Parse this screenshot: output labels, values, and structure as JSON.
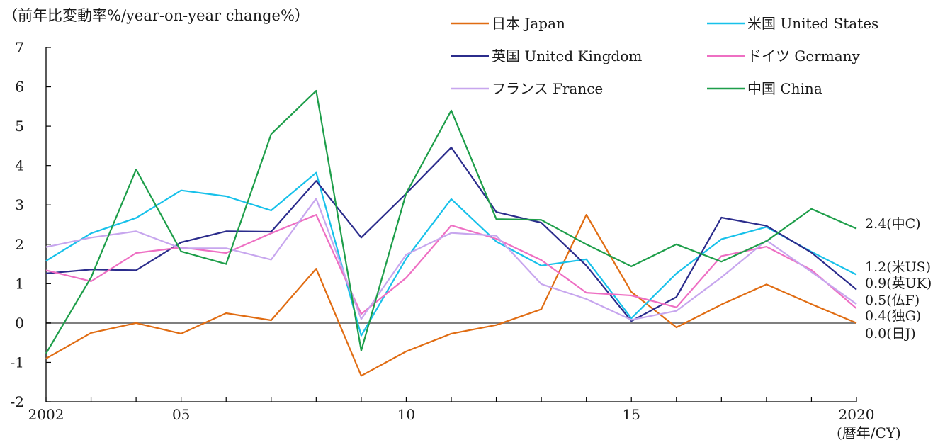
{
  "chart_data": {
    "type": "line",
    "ylabel": "（前年比変動率%/year-on-year change%）",
    "xlabel_unit": "(暦年/CY)",
    "ylim": [
      -2,
      7
    ],
    "yticks": [
      -2,
      -1,
      0,
      1,
      2,
      3,
      4,
      5,
      6,
      7
    ],
    "x": [
      2002,
      2003,
      2004,
      2005,
      2006,
      2007,
      2008,
      2009,
      2010,
      2011,
      2012,
      2013,
      2014,
      2015,
      2016,
      2017,
      2018,
      2019,
      2020
    ],
    "xticks": [
      {
        "x": 2002,
        "label": "2002"
      },
      {
        "x": 2005,
        "label": "05"
      },
      {
        "x": 2010,
        "label": "10"
      },
      {
        "x": 2015,
        "label": "15"
      },
      {
        "x": 2020,
        "label": "2020"
      }
    ],
    "zero_line": true,
    "series": [
      {
        "name": "日本 Japan",
        "color": "#e06c12",
        "end_label": "0.0(日J)",
        "values": [
          -0.9,
          -0.25,
          0.0,
          -0.27,
          0.25,
          0.07,
          1.38,
          -1.34,
          -0.72,
          -0.27,
          -0.05,
          0.35,
          2.75,
          0.79,
          -0.11,
          0.47,
          0.98,
          0.48,
          0.0
        ]
      },
      {
        "name": "米国 United States",
        "color": "#17c1ea",
        "end_label": "1.2(米US)",
        "values": [
          1.58,
          2.28,
          2.67,
          3.37,
          3.22,
          2.86,
          3.82,
          -0.32,
          1.64,
          3.15,
          2.07,
          1.46,
          1.62,
          0.12,
          1.26,
          2.13,
          2.44,
          1.81,
          1.23
        ]
      },
      {
        "name": "英国 United Kingdom",
        "color": "#2b2c8c",
        "end_label": "0.9(英UK)",
        "values": [
          1.26,
          1.36,
          1.34,
          2.05,
          2.33,
          2.32,
          3.61,
          2.17,
          3.29,
          4.46,
          2.82,
          2.55,
          1.46,
          0.05,
          0.66,
          2.68,
          2.47,
          1.79,
          0.85
        ]
      },
      {
        "name": "ドイツ Germany",
        "color": "#ee6fc3",
        "end_label": "0.4(独G)",
        "values": [
          1.34,
          1.06,
          1.78,
          1.92,
          1.78,
          2.28,
          2.75,
          0.23,
          1.15,
          2.48,
          2.14,
          1.6,
          0.77,
          0.7,
          0.4,
          1.7,
          1.94,
          1.35,
          0.37
        ]
      },
      {
        "name": "フランス France",
        "color": "#c7a6ee",
        "end_label": "0.5(仏F)",
        "values": [
          1.93,
          2.17,
          2.33,
          1.9,
          1.9,
          1.61,
          3.16,
          0.1,
          1.74,
          2.29,
          2.22,
          0.99,
          0.61,
          0.08,
          0.31,
          1.16,
          2.1,
          1.3,
          0.48
        ]
      },
      {
        "name": "中国 China",
        "color": "#1e9e4a",
        "end_label": "2.4(中C)",
        "values": [
          -0.77,
          1.16,
          3.9,
          1.82,
          1.5,
          4.8,
          5.9,
          -0.7,
          3.3,
          5.4,
          2.64,
          2.62,
          2.0,
          1.44,
          2.0,
          1.56,
          2.08,
          2.9,
          2.4
        ]
      }
    ],
    "legend_placement": "top-right"
  }
}
